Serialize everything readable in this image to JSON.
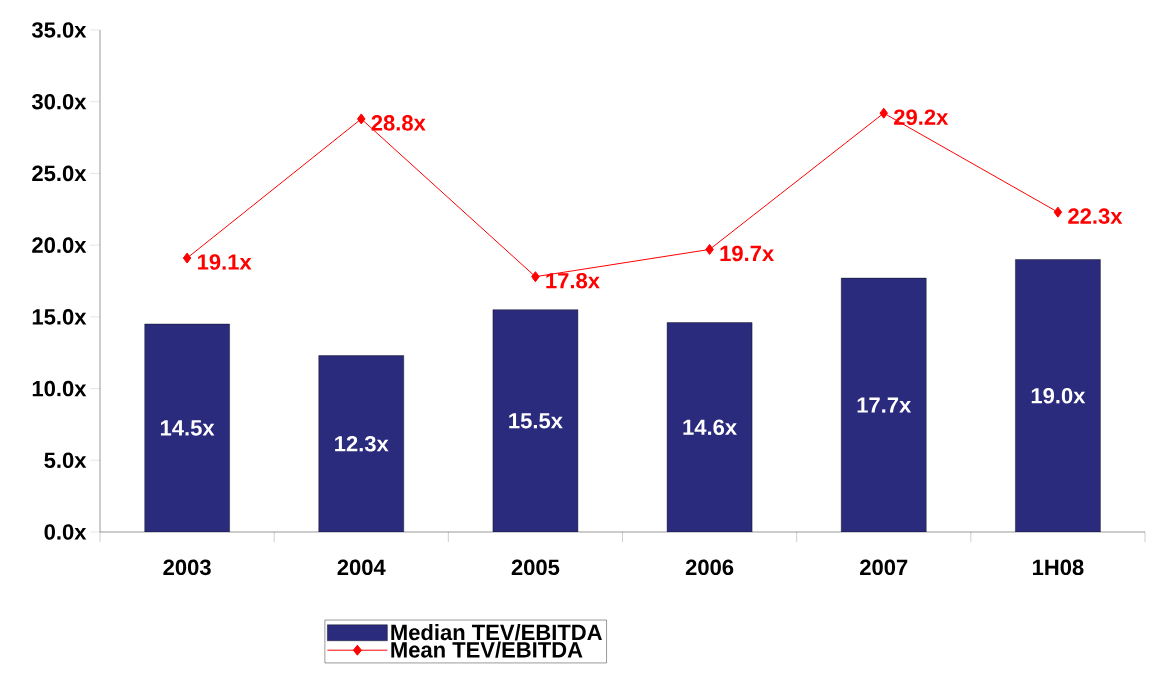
{
  "chart_data": {
    "type": "bar",
    "categories": [
      "2003",
      "2004",
      "2005",
      "2006",
      "2007",
      "1H08"
    ],
    "series": [
      {
        "name": "Median TEV/EBITDA",
        "color": "#2b2b7e",
        "values": [
          14.5,
          12.3,
          15.5,
          14.6,
          17.7,
          19.0
        ],
        "value_labels": [
          "14.5x",
          "12.3x",
          "15.5x",
          "14.6x",
          "17.7x",
          "19.0x"
        ]
      },
      {
        "name": "Mean TEV/EBITDA",
        "type": "line",
        "color": "#ff0000",
        "marker": "diamond",
        "values": [
          19.1,
          28.8,
          17.8,
          19.7,
          29.2,
          22.3
        ],
        "value_labels": [
          "19.1x",
          "28.8x",
          "17.8x",
          "19.7x",
          "29.2x",
          "22.3x"
        ]
      }
    ],
    "ylim": [
      0,
      35
    ],
    "yticks": [
      {
        "value": 0,
        "label": "0.0x"
      },
      {
        "value": 5,
        "label": "5.0x"
      },
      {
        "value": 10,
        "label": "10.0x"
      },
      {
        "value": 15,
        "label": "15.0x"
      },
      {
        "value": 20,
        "label": "20.0x"
      },
      {
        "value": 25,
        "label": "25.0x"
      },
      {
        "value": 30,
        "label": "30.0x"
      },
      {
        "value": 35,
        "label": "35.0x"
      }
    ],
    "legend": "bottom"
  }
}
